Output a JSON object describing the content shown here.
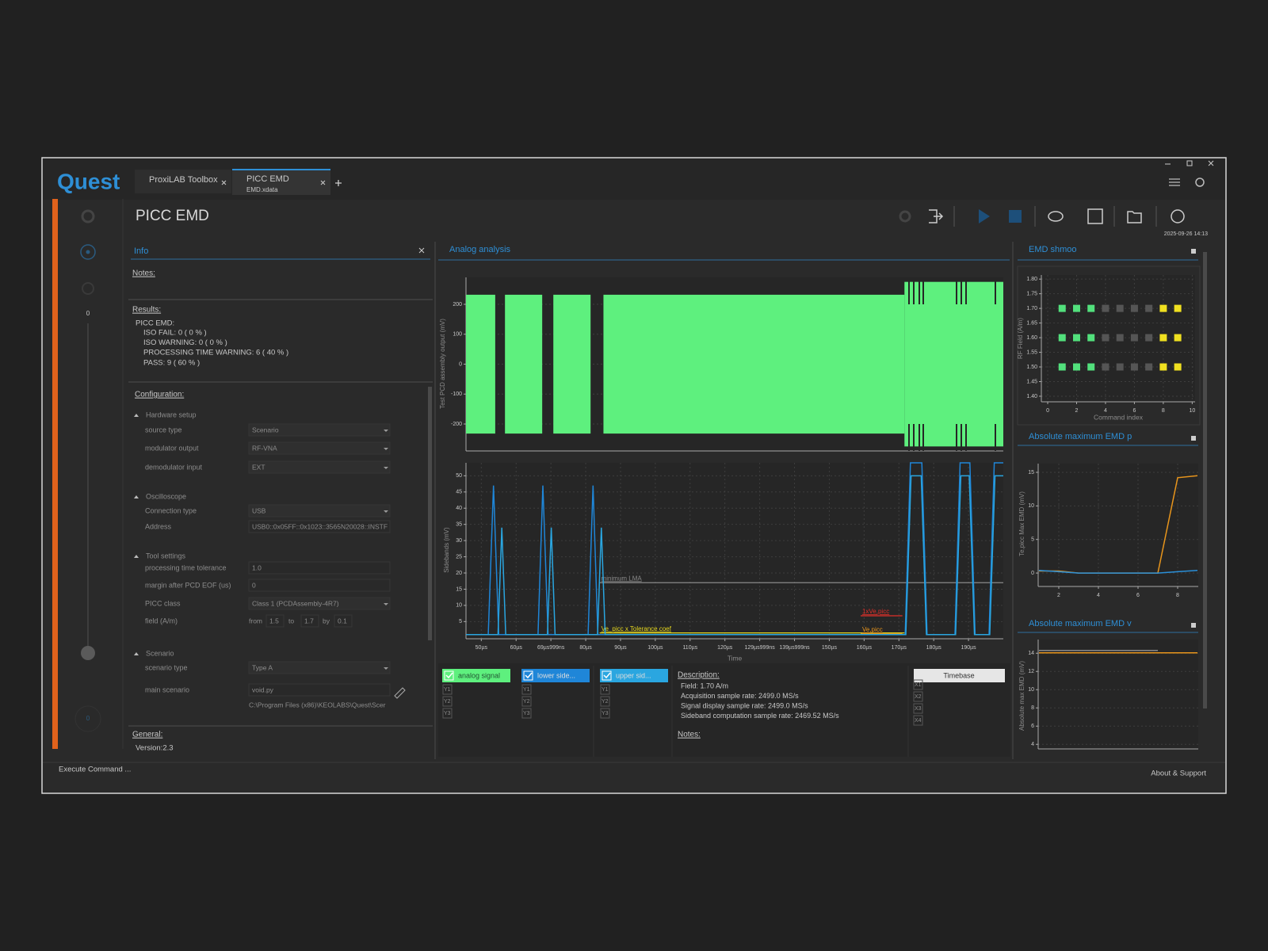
{
  "app": {
    "logo": "Quest",
    "tabs": [
      {
        "title": "ProxiLAB Toolbox"
      },
      {
        "title": "PICC EMD",
        "subtitle": "EMD.xdata"
      }
    ],
    "page_title": "PICC EMD",
    "timestamp": "2025-09-26 14:13",
    "sidebar_labels": [
      "0",
      "0"
    ]
  },
  "info": {
    "title": "Info",
    "notes_label": "Notes:",
    "results_label": "Results:",
    "results_heading": "PICC EMD:",
    "results": [
      "ISO FAIL: 0 ( 0 % )",
      "ISO WARNING: 0 ( 0 % )",
      "PROCESSING TIME WARNING: 6 ( 40 % )",
      "PASS: 9 ( 60 % )"
    ],
    "configuration_label": "Configuration:",
    "sections": [
      {
        "title": "Hardware setup",
        "rows": [
          {
            "label": "source type",
            "value": "Scenario",
            "dropdown": true
          },
          {
            "label": "modulator output",
            "value": "RF-VNA",
            "dropdown": true
          },
          {
            "label": "demodulator input",
            "value": "EXT",
            "dropdown": true
          }
        ]
      },
      {
        "title": "Oscilloscope",
        "rows": [
          {
            "label": "Connection type",
            "value": "USB",
            "dropdown": true
          },
          {
            "label": "Address",
            "value": "USB0::0x05FF::0x1023::3565N20028::INSTF",
            "dropdown": false
          }
        ]
      },
      {
        "title": "Tool settings",
        "rows": [
          {
            "label": "processing time tolerance",
            "value": "1.0",
            "dropdown": false
          },
          {
            "label": "margin after PCD EOF (us)",
            "value": "0",
            "dropdown": false
          },
          {
            "label": "PICC class",
            "value": "Class 1 (PCDAssembly-4R7)",
            "dropdown": true
          }
        ]
      },
      {
        "title": "Scenario",
        "rows": [
          {
            "label": "scenario type",
            "value": "Type A",
            "dropdown": true
          },
          {
            "label": "main scenario",
            "value": "void.py",
            "dropdown": false
          }
        ]
      }
    ],
    "field_row": {
      "label": "field (A/m)",
      "from_label": "from",
      "from": "1.5",
      "to_label": "to",
      "to": "1.7",
      "by_label": "by",
      "by": "0.1"
    },
    "scenario_path": "C:\\Program Files (x86)\\KEOLABS\\Quest\\Scer",
    "general_label": "General:",
    "version": "Version:2.3"
  },
  "legend_panel": {
    "axis_labels": [
      "Y1",
      "Y2",
      "Y3"
    ],
    "timebase": "Timebase",
    "timebase_labels": [
      "X1",
      "X2",
      "X3",
      "X4"
    ]
  },
  "description": {
    "label": "Description:",
    "lines": [
      "Field: 1.70 A/m",
      "Acquisition sample rate: 2499.0 MS/s",
      "Signal display sample rate: 2499.0 MS/s",
      "Sideband computation sample rate: 2469.52 MS/s"
    ],
    "notes_label": "Notes:"
  },
  "status": {
    "left": "Execute Command ...",
    "right": "About & Support"
  },
  "chart_data": [
    {
      "type": "band",
      "title": "Analog analysis",
      "y_label": "Test PCD assembly output (mV)",
      "xlim": [
        45.6,
        200
      ],
      "ylim": [
        -290,
        290
      ],
      "yticks": [
        -200,
        -100,
        0,
        100,
        200
      ],
      "grid": true,
      "series": [
        {
          "name": "analog signal",
          "color": "#5ef07e",
          "x_start": [
            45.6,
            56.8,
            70.7,
            85.1,
            171.6
          ],
          "x_end": [
            54.0,
            67.5,
            81.4,
            171.6,
            200
          ],
          "values": [
            232,
            232,
            232,
            232,
            275
          ]
        }
      ]
    },
    {
      "type": "line",
      "y_label": "Sidebands (mV)",
      "x_label": "Time",
      "xlim": [
        45.6,
        200
      ],
      "ylim": [
        -0.3,
        54
      ],
      "xticks": [
        {
          "value": 50,
          "label": "50µs"
        },
        {
          "value": 60,
          "label": "60µs"
        },
        {
          "value": 70,
          "label": "69µs999ns"
        },
        {
          "value": 80,
          "label": "80µs"
        },
        {
          "value": 90,
          "label": "90µs"
        },
        {
          "value": 100,
          "label": "100µs"
        },
        {
          "value": 110,
          "label": "110µs"
        },
        {
          "value": 120,
          "label": "120µs"
        },
        {
          "value": 130,
          "label": "129µs999ns"
        },
        {
          "value": 140,
          "label": "139µs999ns"
        },
        {
          "value": 150,
          "label": "150µs"
        },
        {
          "value": 160,
          "label": "160µs"
        },
        {
          "value": 170,
          "label": "170µs"
        },
        {
          "value": 180,
          "label": "180µs"
        },
        {
          "value": 190,
          "label": "190µs"
        }
      ],
      "yticks": [
        5,
        10,
        15,
        20,
        25,
        30,
        35,
        40,
        45,
        50
      ],
      "grid": true,
      "series": [
        {
          "name": "lower side...",
          "color": "#1f86d8",
          "x": [
            45.6,
            52.0,
            53.5,
            55.0,
            66.3,
            67.7,
            69.2,
            80.7,
            82.1,
            83.5,
            171.8,
            173.3,
            176.6,
            178.1,
            186.1,
            187.6,
            190.4,
            191.9,
            195.9,
            197.4,
            200
          ],
          "values": [
            1,
            1,
            47,
            1,
            1,
            47,
            1,
            1,
            47,
            1,
            1,
            54,
            54,
            1,
            1,
            54,
            54,
            1,
            1,
            54,
            54
          ]
        },
        {
          "name": "upper sid...",
          "color": "#2aa6e0",
          "x": [
            45.6,
            54.8,
            55.9,
            57.0,
            69.0,
            70.1,
            71.2,
            83.4,
            84.5,
            85.6,
            172.0,
            173.5,
            176.4,
            177.9,
            186.3,
            187.8,
            190.2,
            191.7,
            196.1,
            197.6,
            200
          ],
          "values": [
            1,
            1,
            34,
            1,
            1,
            34,
            1,
            1,
            34,
            1,
            1,
            50,
            50,
            1,
            1,
            50,
            50,
            1,
            1,
            50,
            50
          ]
        }
      ],
      "reference_lines": [
        {
          "label": "minimum LMA",
          "value": 17,
          "x_start": 84,
          "x_end": 200,
          "color": "#8a8a8a"
        },
        {
          "label": "Ve_picc x Tolerance coef",
          "value": 1.5,
          "x_start": 84,
          "x_end": 171.6,
          "color": "#e6d81e"
        },
        {
          "label": "1xVe,picc",
          "value": 6.8,
          "x_start": 159,
          "x_end": 171,
          "color": "#e0302a"
        },
        {
          "label": "Ve,picc",
          "value": 1.2,
          "x_start": 159,
          "x_end": 171,
          "color": "#e8951c"
        }
      ]
    },
    {
      "type": "scatter",
      "title": "EMD shmoo",
      "x_label": "Command index",
      "y_label": "RF Field (A/m)",
      "xlim": [
        -0.44,
        10.2
      ],
      "ylim": [
        1.381,
        1.814
      ],
      "xticks": [
        0,
        2,
        4,
        6,
        8,
        10
      ],
      "yticks": [
        {
          "value": 1.4,
          "label": "1.40"
        },
        1.45,
        {
          "value": 1.5,
          "label": "1.50"
        },
        1.55,
        {
          "value": 1.6,
          "label": "1.60"
        },
        1.65,
        {
          "value": 1.7,
          "label": "1.70"
        },
        1.75,
        {
          "value": 1.8,
          "label": "1.80"
        }
      ],
      "grid": true,
      "series": [
        {
          "color": "#52e07c",
          "x": [
            1,
            2,
            3,
            1,
            2,
            3,
            1,
            2,
            3
          ],
          "values": [
            1.5,
            1.5,
            1.5,
            1.6,
            1.6,
            1.6,
            1.7,
            1.7,
            1.7
          ]
        },
        {
          "color": "#555555",
          "x": [
            4,
            5,
            6,
            7,
            4,
            5,
            6,
            7,
            4,
            5,
            6,
            7
          ],
          "values": [
            1.5,
            1.5,
            1.5,
            1.5,
            1.6,
            1.6,
            1.6,
            1.6,
            1.7,
            1.7,
            1.7,
            1.7
          ]
        },
        {
          "color": "#f0e020",
          "x": [
            8,
            9,
            8,
            9,
            8,
            9
          ],
          "values": [
            1.5,
            1.5,
            1.6,
            1.6,
            1.7,
            1.7
          ]
        }
      ]
    },
    {
      "type": "line",
      "title": "Absolute maximum EMD p",
      "y_label": "Te,picc Max EMD (mV)",
      "xlim": [
        0.96,
        9.04
      ],
      "ylim": [
        -2,
        16.3
      ],
      "xticks": [
        2,
        4,
        6,
        8
      ],
      "yticks": [
        0,
        5,
        10,
        15
      ],
      "grid": true,
      "series": [
        {
          "color": "#e8951c",
          "x": [
            1,
            2,
            3,
            4,
            5,
            6,
            7,
            8,
            9
          ],
          "values": [
            0.3,
            0.3,
            0,
            0,
            0,
            0,
            0,
            14.2,
            14.5
          ]
        },
        {
          "color": "#2a8fd8",
          "x": [
            1,
            2,
            3,
            4,
            5,
            6,
            7,
            8,
            9
          ],
          "values": [
            0.4,
            0.2,
            0,
            0,
            0,
            0,
            0,
            0.2,
            0.4
          ]
        }
      ]
    },
    {
      "type": "line",
      "title": "Absolute maximum EMD v",
      "y_label": "Absolute max EMD (mV)",
      "xlim": [
        0.96,
        9.04
      ],
      "ylim": [
        3.5,
        15.5
      ],
      "yticks": [
        4,
        6,
        8,
        10,
        12,
        14
      ],
      "grid": true,
      "series": [
        {
          "color": "#8a8a8a",
          "x": [
            1,
            2,
            3,
            4,
            5,
            6,
            7
          ],
          "values": [
            14.3,
            14.3,
            14.3,
            14.3,
            14.3,
            14.3,
            14.3
          ]
        },
        {
          "color": "#e8951c",
          "x": [
            1,
            2,
            3,
            4,
            5,
            6,
            7,
            8,
            9
          ],
          "values": [
            14.05,
            14.05,
            14.05,
            14.05,
            14.05,
            14.05,
            14.05,
            14.05,
            14.05
          ]
        }
      ]
    }
  ]
}
